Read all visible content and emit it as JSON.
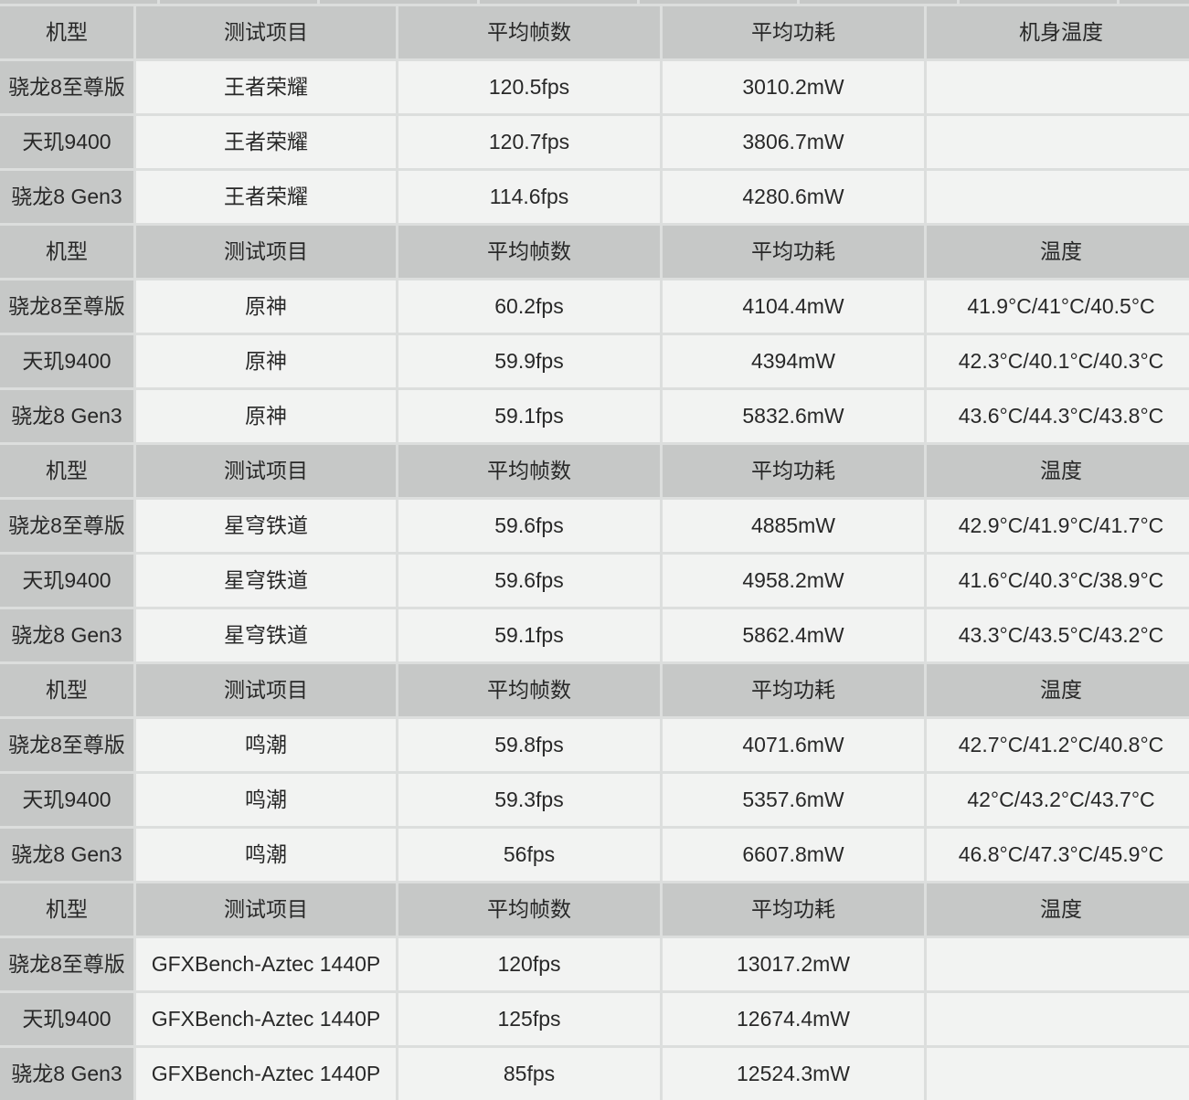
{
  "meta": {
    "description": "Smartphone SoC game benchmark comparison table",
    "colors": {
      "header_bg": "#c6c8c7",
      "row_bg": "#f2f3f2",
      "divider": "#dcdedd",
      "text": "#282828"
    },
    "partial_row_above": true
  },
  "table": {
    "column_keys": [
      "model",
      "test",
      "fps",
      "power",
      "temp"
    ],
    "sections": [
      {
        "header": {
          "model": "机型",
          "test": "测试项目",
          "fps": "平均帧数",
          "power": "平均功耗",
          "temp": "机身温度"
        },
        "rows": [
          {
            "model": "骁龙8至尊版",
            "test": "王者荣耀",
            "fps": "120.5fps",
            "power": "3010.2mW",
            "temp": ""
          },
          {
            "model": "天玑9400",
            "test": "王者荣耀",
            "fps": "120.7fps",
            "power": "3806.7mW",
            "temp": ""
          },
          {
            "model": "骁龙8 Gen3",
            "test": "王者荣耀",
            "fps": "114.6fps",
            "power": "4280.6mW",
            "temp": ""
          }
        ]
      },
      {
        "header": {
          "model": "机型",
          "test": "测试项目",
          "fps": "平均帧数",
          "power": "平均功耗",
          "temp": "温度"
        },
        "rows": [
          {
            "model": "骁龙8至尊版",
            "test": "原神",
            "fps": "60.2fps",
            "power": "4104.4mW",
            "temp": "41.9°C/41°C/40.5°C"
          },
          {
            "model": "天玑9400",
            "test": "原神",
            "fps": "59.9fps",
            "power": "4394mW",
            "temp": "42.3°C/40.1°C/40.3°C"
          },
          {
            "model": "骁龙8 Gen3",
            "test": "原神",
            "fps": "59.1fps",
            "power": "5832.6mW",
            "temp": "43.6°C/44.3°C/43.8°C"
          }
        ]
      },
      {
        "header": {
          "model": "机型",
          "test": "测试项目",
          "fps": "平均帧数",
          "power": "平均功耗",
          "temp": "温度"
        },
        "rows": [
          {
            "model": "骁龙8至尊版",
            "test": "星穹铁道",
            "fps": "59.6fps",
            "power": "4885mW",
            "temp": "42.9°C/41.9°C/41.7°C"
          },
          {
            "model": "天玑9400",
            "test": "星穹铁道",
            "fps": "59.6fps",
            "power": "4958.2mW",
            "temp": "41.6°C/40.3°C/38.9°C"
          },
          {
            "model": "骁龙8 Gen3",
            "test": "星穹铁道",
            "fps": "59.1fps",
            "power": "5862.4mW",
            "temp": "43.3°C/43.5°C/43.2°C"
          }
        ]
      },
      {
        "header": {
          "model": "机型",
          "test": "测试项目",
          "fps": "平均帧数",
          "power": "平均功耗",
          "temp": "温度"
        },
        "rows": [
          {
            "model": "骁龙8至尊版",
            "test": "鸣潮",
            "fps": "59.8fps",
            "power": "4071.6mW",
            "temp": "42.7°C/41.2°C/40.8°C"
          },
          {
            "model": "天玑9400",
            "test": "鸣潮",
            "fps": "59.3fps",
            "power": "5357.6mW",
            "temp": "42°C/43.2°C/43.7°C"
          },
          {
            "model": "骁龙8 Gen3",
            "test": "鸣潮",
            "fps": "56fps",
            "power": "6607.8mW",
            "temp": "46.8°C/47.3°C/45.9°C"
          }
        ]
      },
      {
        "header": {
          "model": "机型",
          "test": "测试项目",
          "fps": "平均帧数",
          "power": "平均功耗",
          "temp": "温度"
        },
        "rows": [
          {
            "model": "骁龙8至尊版",
            "test": "GFXBench-Aztec 1440P",
            "fps": "120fps",
            "power": "13017.2mW",
            "temp": ""
          },
          {
            "model": "天玑9400",
            "test": "GFXBench-Aztec 1440P",
            "fps": "125fps",
            "power": "12674.4mW",
            "temp": ""
          },
          {
            "model": "骁龙8 Gen3",
            "test": "GFXBench-Aztec 1440P",
            "fps": "85fps",
            "power": "12524.3mW",
            "temp": ""
          }
        ]
      }
    ]
  },
  "chart_data": {
    "type": "table",
    "title": "",
    "columns": [
      "机型",
      "测试项目",
      "平均帧数",
      "平均功耗",
      "机身温度/温度"
    ],
    "rows": [
      [
        "骁龙8至尊版",
        "王者荣耀",
        "120.5fps",
        "3010.2mW",
        ""
      ],
      [
        "天玑9400",
        "王者荣耀",
        "120.7fps",
        "3806.7mW",
        ""
      ],
      [
        "骁龙8 Gen3",
        "王者荣耀",
        "114.6fps",
        "4280.6mW",
        ""
      ],
      [
        "骁龙8至尊版",
        "原神",
        "60.2fps",
        "4104.4mW",
        "41.9°C/41°C/40.5°C"
      ],
      [
        "天玑9400",
        "原神",
        "59.9fps",
        "4394mW",
        "42.3°C/40.1°C/40.3°C"
      ],
      [
        "骁龙8 Gen3",
        "原神",
        "59.1fps",
        "5832.6mW",
        "43.6°C/44.3°C/43.8°C"
      ],
      [
        "骁龙8至尊版",
        "星穹铁道",
        "59.6fps",
        "4885mW",
        "42.9°C/41.9°C/41.7°C"
      ],
      [
        "天玑9400",
        "星穹铁道",
        "59.6fps",
        "4958.2mW",
        "41.6°C/40.3°C/38.9°C"
      ],
      [
        "骁龙8 Gen3",
        "星穹铁道",
        "59.1fps",
        "5862.4mW",
        "43.3°C/43.5°C/43.2°C"
      ],
      [
        "骁龙8至尊版",
        "鸣潮",
        "59.8fps",
        "4071.6mW",
        "42.7°C/41.2°C/40.8°C"
      ],
      [
        "天玑9400",
        "鸣潮",
        "59.3fps",
        "5357.6mW",
        "42°C/43.2°C/43.7°C"
      ],
      [
        "骁龙8 Gen3",
        "鸣潮",
        "56fps",
        "6607.8mW",
        "46.8°C/47.3°C/45.9°C"
      ],
      [
        "骁龙8至尊版",
        "GFXBench-Aztec 1440P",
        "120fps",
        "13017.2mW",
        ""
      ],
      [
        "天玑9400",
        "GFXBench-Aztec 1440P",
        "125fps",
        "12674.4mW",
        ""
      ],
      [
        "骁龙8 Gen3",
        "GFXBench-Aztec 1440P",
        "85fps",
        "12524.3mW",
        ""
      ]
    ]
  }
}
